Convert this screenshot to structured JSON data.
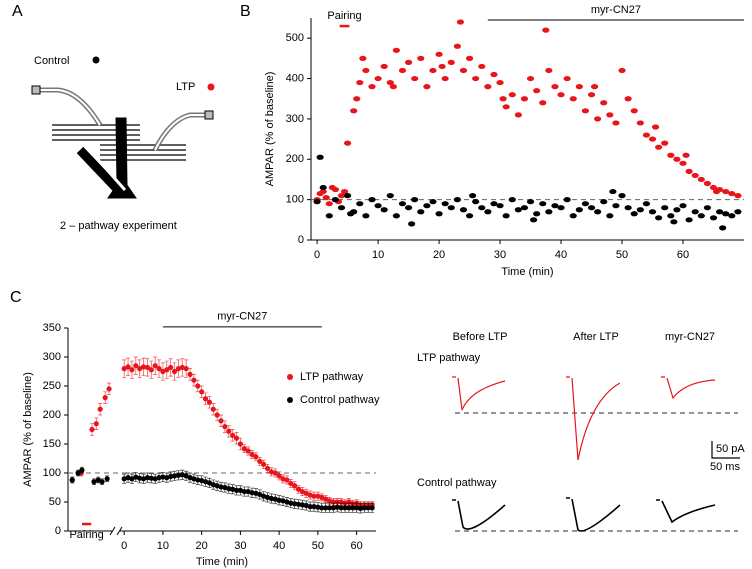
{
  "panel_labels": [
    "A",
    "B",
    "C"
  ],
  "diagram": {
    "control_label": "Control",
    "ltp_label": "LTP",
    "caption": "2 – pathway experiment"
  },
  "chart_data": [
    {
      "type": "scatter",
      "y_label": "AMPAR (% of baseline)",
      "x_label": "Time (min)",
      "xlim": [
        -1,
        70
      ],
      "ylim": [
        0,
        550
      ],
      "xticks": [
        0,
        10,
        20,
        30,
        40,
        50,
        60
      ],
      "yticks": [
        0,
        100,
        200,
        300,
        400,
        500
      ],
      "reference_line": 100,
      "annotations": [
        {
          "text": "Pairing",
          "x": [
            3.7,
            5.3
          ],
          "y": 530,
          "color": "#e8151b",
          "label_position": "above"
        },
        {
          "text": "myr-CN27",
          "x": [
            28,
            70
          ],
          "y": 545,
          "color": "#000000",
          "label_position": "above"
        }
      ],
      "series": [
        {
          "color": "#e8151b",
          "x": [
            0,
            1,
            2,
            3,
            4,
            5,
            6,
            7,
            8,
            9,
            10,
            11,
            12,
            13,
            14,
            15,
            16,
            17,
            18,
            19,
            20,
            21,
            22,
            23,
            24,
            25,
            26,
            27,
            28,
            29,
            30,
            31,
            32,
            33,
            34,
            35,
            36,
            37,
            38,
            39,
            40,
            41,
            42,
            43,
            44,
            45,
            46,
            47,
            48,
            49,
            50,
            51,
            52,
            53,
            54,
            55,
            56,
            57,
            58,
            59,
            60,
            61,
            62,
            63,
            64,
            65,
            66,
            67,
            68,
            69,
            0.5,
            1.5,
            2.5,
            3.5,
            4.5,
            6.5,
            7.5,
            23.5,
            37.5,
            12.5,
            20.5,
            30.5,
            45.5,
            55.5,
            60.5,
            65.5
          ],
          "values": [
            100,
            120,
            90,
            125,
            110,
            240,
            320,
            390,
            420,
            380,
            400,
            430,
            390,
            470,
            420,
            440,
            400,
            450,
            380,
            420,
            460,
            400,
            440,
            480,
            420,
            450,
            400,
            430,
            380,
            410,
            390,
            330,
            360,
            310,
            350,
            400,
            370,
            340,
            420,
            380,
            360,
            400,
            350,
            380,
            320,
            360,
            300,
            340,
            310,
            290,
            420,
            350,
            320,
            290,
            260,
            250,
            230,
            240,
            210,
            200,
            190,
            170,
            160,
            150,
            140,
            130,
            125,
            120,
            115,
            110,
            115,
            105,
            130,
            95,
            120,
            350,
            450,
            540,
            520,
            380,
            430,
            350,
            380,
            280,
            210,
            120
          ]
        },
        {
          "color": "#000000",
          "x": [
            0,
            1,
            2,
            3,
            4,
            5,
            6,
            7,
            8,
            9,
            10,
            11,
            12,
            13,
            14,
            15,
            16,
            17,
            18,
            19,
            20,
            21,
            22,
            23,
            24,
            25,
            26,
            27,
            28,
            29,
            30,
            31,
            32,
            33,
            34,
            35,
            36,
            37,
            38,
            39,
            40,
            41,
            42,
            43,
            44,
            45,
            46,
            47,
            48,
            49,
            50,
            51,
            52,
            53,
            54,
            55,
            56,
            57,
            58,
            59,
            60,
            61,
            62,
            63,
            64,
            65,
            66,
            67,
            68,
            69,
            0.5,
            5.5,
            15.5,
            25.5,
            35.5,
            48.5,
            58.5,
            66.5
          ],
          "values": [
            95,
            130,
            60,
            100,
            80,
            110,
            70,
            90,
            60,
            100,
            85,
            75,
            110,
            60,
            90,
            80,
            100,
            70,
            85,
            95,
            65,
            90,
            80,
            100,
            75,
            60,
            95,
            80,
            70,
            90,
            85,
            60,
            100,
            75,
            80,
            95,
            65,
            90,
            70,
            85,
            80,
            100,
            60,
            75,
            90,
            80,
            70,
            95,
            60,
            85,
            110,
            80,
            65,
            75,
            90,
            70,
            55,
            80,
            60,
            75,
            85,
            50,
            70,
            60,
            80,
            55,
            70,
            65,
            60,
            70,
            205,
            65,
            40,
            110,
            50,
            120,
            45,
            30
          ]
        }
      ]
    },
    {
      "type": "errorbar",
      "y_label": "AMPAR (% of baseline)",
      "x_label": "Time (min)",
      "xlim": [
        -14.5,
        65
      ],
      "ylim": [
        0,
        350
      ],
      "xticks": [
        0,
        10,
        20,
        30,
        40,
        50,
        60
      ],
      "yticks": [
        0,
        50,
        100,
        150,
        200,
        250,
        300,
        350
      ],
      "reference_line": 100,
      "annotations": [
        {
          "text": "Pairing",
          "x": [
            -10.9,
            -8.5
          ],
          "y": 12,
          "color": "#e8151b",
          "label_position": "below"
        },
        {
          "text": "myr-CN27",
          "x": [
            10,
            51
          ],
          "y": 352,
          "color": "#000000",
          "label_position": "above"
        }
      ],
      "legend": true,
      "series": [
        {
          "name": "LTP pathway",
          "color": "#e8151b",
          "x": [
            -13.4,
            -11.1,
            -8.3,
            -7.2,
            -6.2,
            -4.9,
            -3.9,
            0,
            1,
            2,
            3,
            4,
            5,
            6,
            7,
            8,
            9,
            10,
            11,
            12,
            13,
            14,
            15,
            16,
            17,
            18,
            19,
            20,
            21,
            22,
            23,
            24,
            25,
            26,
            27,
            28,
            29,
            30,
            31,
            32,
            33,
            34,
            35,
            36,
            37,
            38,
            39,
            40,
            41,
            42,
            43,
            44,
            45,
            46,
            47,
            48,
            49,
            50,
            51,
            52,
            53,
            54,
            55,
            56,
            57,
            58,
            59,
            60,
            61,
            62,
            63,
            64
          ],
          "values": [
            88,
            100,
            175,
            185,
            210,
            230,
            245,
            280,
            283,
            278,
            285,
            280,
            283,
            282,
            278,
            285,
            280,
            275,
            278,
            282,
            275,
            280,
            282,
            280,
            270,
            260,
            250,
            240,
            228,
            222,
            210,
            200,
            190,
            180,
            172,
            165,
            160,
            150,
            142,
            138,
            132,
            128,
            120,
            115,
            108,
            102,
            100,
            95,
            90,
            88,
            82,
            78,
            72,
            68,
            65,
            62,
            60,
            60,
            58,
            55,
            52,
            50,
            50,
            50,
            48,
            50,
            47,
            48,
            45,
            45,
            45,
            45
          ],
          "errors": [
            5,
            5,
            10,
            10,
            10,
            10,
            10,
            15,
            15,
            15,
            15,
            15,
            15,
            15,
            15,
            15,
            15,
            15,
            15,
            15,
            15,
            15,
            15,
            15,
            10,
            10,
            10,
            10,
            10,
            10,
            10,
            10,
            10,
            10,
            10,
            10,
            10,
            10,
            7,
            7,
            7,
            7,
            7,
            7,
            7,
            7,
            7,
            7,
            7,
            7,
            7,
            7,
            7,
            7,
            7,
            7,
            7,
            7,
            6,
            6,
            6,
            6,
            6,
            6,
            6,
            6,
            6,
            6,
            6,
            6,
            6,
            6
          ]
        },
        {
          "name": "Control pathway",
          "color": "#000000",
          "x": [
            -13.4,
            -11.9,
            -10.9,
            -7.8,
            -6.7,
            -5.7,
            -4.4,
            0,
            1,
            2,
            3,
            4,
            5,
            6,
            7,
            8,
            9,
            10,
            11,
            12,
            13,
            14,
            15,
            16,
            17,
            18,
            19,
            20,
            21,
            22,
            23,
            24,
            25,
            26,
            27,
            28,
            29,
            30,
            31,
            32,
            33,
            34,
            35,
            36,
            37,
            38,
            39,
            40,
            41,
            42,
            43,
            44,
            45,
            46,
            47,
            48,
            49,
            50,
            51,
            52,
            53,
            54,
            55,
            56,
            57,
            58,
            59,
            60,
            61,
            62,
            63,
            64
          ],
          "values": [
            88,
            100,
            105,
            85,
            88,
            85,
            90,
            90,
            92,
            90,
            93,
            91,
            90,
            92,
            91,
            90,
            92,
            93,
            92,
            94,
            95,
            96,
            97,
            95,
            92,
            90,
            88,
            87,
            85,
            83,
            80,
            78,
            76,
            75,
            73,
            72,
            70,
            70,
            68,
            68,
            66,
            65,
            63,
            60,
            58,
            56,
            55,
            53,
            52,
            50,
            48,
            47,
            46,
            45,
            44,
            42,
            42,
            41,
            40,
            40,
            40,
            40,
            41,
            40,
            40,
            40,
            40,
            40,
            39,
            40,
            40,
            40
          ],
          "errors": [
            5,
            5,
            5,
            5,
            5,
            5,
            5,
            8,
            8,
            8,
            8,
            8,
            8,
            8,
            8,
            8,
            8,
            8,
            8,
            8,
            8,
            8,
            8,
            8,
            8,
            8,
            8,
            8,
            8,
            8,
            8,
            8,
            8,
            8,
            8,
            8,
            8,
            8,
            8,
            8,
            8,
            8,
            8,
            8,
            8,
            8,
            8,
            8,
            8,
            8,
            8,
            8,
            8,
            8,
            8,
            8,
            8,
            8,
            8,
            8,
            8,
            8,
            8,
            8,
            8,
            8,
            8,
            8,
            8,
            8,
            8,
            8
          ]
        }
      ]
    }
  ],
  "traces": {
    "columns": [
      "Before LTP",
      "After LTP",
      "myr-CN27"
    ],
    "rows": [
      "LTP pathway",
      "Control pathway"
    ],
    "scale_y": "50 pA",
    "scale_x": "50 ms"
  }
}
